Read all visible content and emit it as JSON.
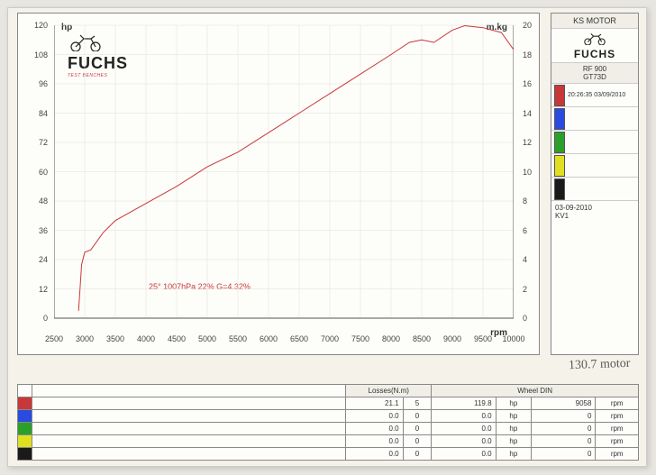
{
  "brand": {
    "name": "FUCHS",
    "subtitle": "TEST BENCHES"
  },
  "chart": {
    "type": "line",
    "hp_label": "hp",
    "mkg_label": "m.kg",
    "rpm_label": "rpm",
    "xlim": [
      2500,
      10000
    ],
    "xtick_step": 500,
    "xticks": [
      2500,
      3000,
      3500,
      4000,
      4500,
      5000,
      5500,
      6000,
      6500,
      7000,
      7500,
      8000,
      8500,
      9000,
      9500,
      10000
    ],
    "ylim": [
      0,
      120
    ],
    "ytick_step": 12,
    "yticks": [
      0,
      12,
      24,
      36,
      48,
      60,
      72,
      84,
      96,
      108,
      120
    ],
    "y2lim": [
      0,
      20
    ],
    "y2tick_step": 2,
    "y2ticks": [
      0,
      2,
      4,
      6,
      8,
      10,
      12,
      14,
      16,
      18,
      20
    ],
    "grid_color": "#e0ded8",
    "axis_color": "#555555",
    "background_color": "#fdfdfa",
    "label_fontsize": 9,
    "conditions_text": "25°  1007hPa  22%   G=4.32%",
    "conditions_color": "#c83838",
    "series": {
      "color": "#c83838",
      "line_width": 1.2,
      "points_rpm": [
        2900,
        2950,
        3000,
        3100,
        3300,
        3500,
        4000,
        4500,
        5000,
        5500,
        6000,
        6500,
        7000,
        7500,
        8000,
        8300,
        8500,
        8700,
        9000,
        9200,
        9500,
        9800,
        10000
      ],
      "points_hp": [
        3,
        22,
        27,
        28,
        35,
        40,
        47,
        54,
        62,
        68,
        76,
        84,
        92,
        100,
        108,
        113,
        114,
        113,
        118,
        119.8,
        119,
        117,
        110
      ]
    }
  },
  "side": {
    "heading": "KS MOTOR",
    "model_line1": "RF 900",
    "model_line2": "GT73D",
    "runs": [
      {
        "color": "#c83838",
        "time": "20:26:35",
        "date": "03/09/2010"
      },
      {
        "color": "#2a4be0",
        "time": "",
        "date": ""
      },
      {
        "color": "#2aa02a",
        "time": "",
        "date": ""
      },
      {
        "color": "#e0e020",
        "time": "",
        "date": ""
      },
      {
        "color": "#1a1a1a",
        "time": "",
        "date": ""
      }
    ],
    "footer_date": "03-09-2010",
    "footer_ref": "KV1"
  },
  "table": {
    "losses_header": "Losses(N.m)",
    "wheel_header": "Wheel DIN",
    "rows": [
      {
        "color": "#c83838",
        "loss": "21.1",
        "gear": "5",
        "hp": "119.8",
        "u1": "hp",
        "rpm_v": "9058",
        "u2": "rpm"
      },
      {
        "color": "#2a4be0",
        "loss": "0.0",
        "gear": "0",
        "hp": "0.0",
        "u1": "hp",
        "rpm_v": "0",
        "u2": "rpm"
      },
      {
        "color": "#2aa02a",
        "loss": "0.0",
        "gear": "0",
        "hp": "0.0",
        "u1": "hp",
        "rpm_v": "0",
        "u2": "rpm"
      },
      {
        "color": "#e0e020",
        "loss": "0.0",
        "gear": "0",
        "hp": "0.0",
        "u1": "hp",
        "rpm_v": "0",
        "u2": "rpm"
      },
      {
        "color": "#1a1a1a",
        "loss": "0.0",
        "gear": "0",
        "hp": "0.0",
        "u1": "hp",
        "rpm_v": "0",
        "u2": "rpm"
      }
    ]
  },
  "handwriting": "130.7 motor"
}
